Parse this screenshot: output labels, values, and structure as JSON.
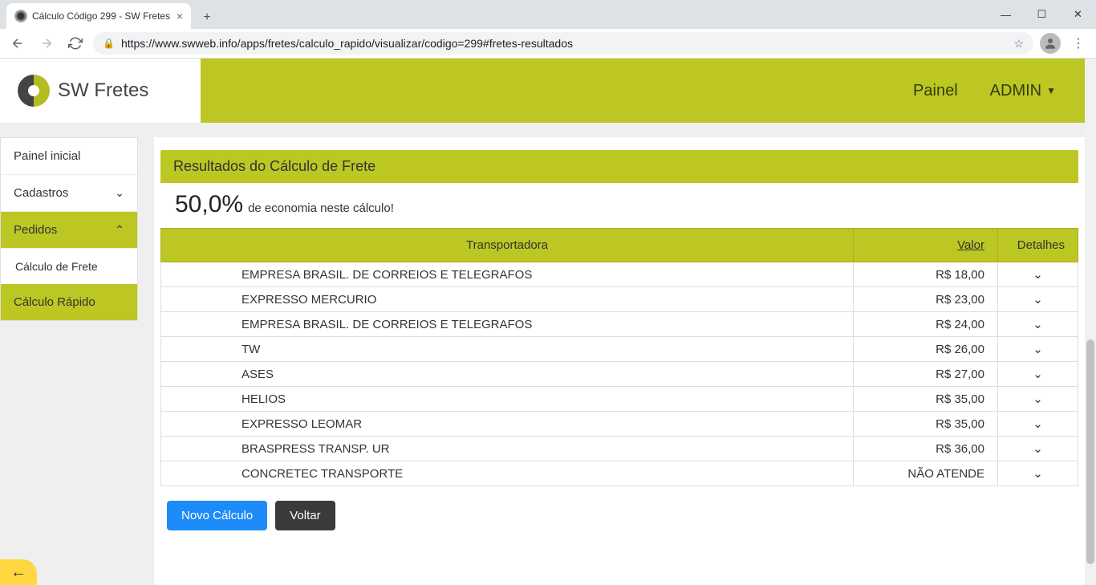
{
  "browser": {
    "tab_title": "Cálculo Código 299 - SW Fretes",
    "url": "https://www.swweb.info/apps/fretes/calculo_rapido/visualizar/codigo=299#fretes-resultados"
  },
  "brand": {
    "name": "SW Fretes"
  },
  "topnav": {
    "painel": "Painel",
    "admin": "ADMIN"
  },
  "sidebar": {
    "painel_inicial": "Painel inicial",
    "cadastros": "Cadastros",
    "pedidos": "Pedidos",
    "calculo_frete": "Cálculo de Frete",
    "calculo_rapido": "Cálculo Rápido"
  },
  "panel": {
    "title": "Resultados do Cálculo de Frete",
    "economy_pct": "50,0%",
    "economy_text": "de economia neste cálculo!"
  },
  "table": {
    "headers": {
      "transportadora": "Transportadora",
      "valor": "Valor",
      "detalhes": "Detalhes"
    },
    "rows": [
      {
        "transp": "EMPRESA BRASIL. DE CORREIOS E TELEGRAFOS",
        "valor": "R$ 18,00"
      },
      {
        "transp": "EXPRESSO MERCURIO",
        "valor": "R$ 23,00"
      },
      {
        "transp": "EMPRESA BRASIL. DE CORREIOS E TELEGRAFOS",
        "valor": "R$ 24,00"
      },
      {
        "transp": "TW",
        "valor": "R$ 26,00"
      },
      {
        "transp": "ASES",
        "valor": "R$ 27,00"
      },
      {
        "transp": "HELIOS",
        "valor": "R$ 35,00"
      },
      {
        "transp": "EXPRESSO LEOMAR",
        "valor": "R$ 35,00"
      },
      {
        "transp": "BRASPRESS TRANSP. UR",
        "valor": "R$ 36,00"
      },
      {
        "transp": "CONCRETEC TRANSPORTE",
        "valor": "NÃO ATENDE"
      }
    ]
  },
  "buttons": {
    "novo_calculo": "Novo Cálculo",
    "voltar": "Voltar"
  },
  "colors": {
    "accent": "#bcc723",
    "btn_primary": "#1d8cf8",
    "btn_dark": "#3a3a3a",
    "fab": "#ffd740"
  }
}
